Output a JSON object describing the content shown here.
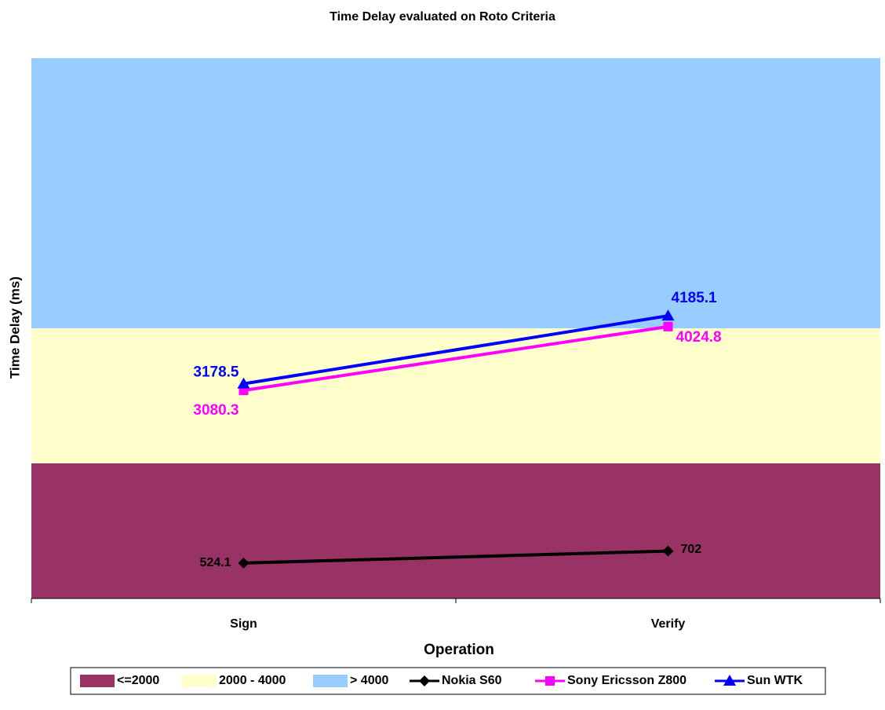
{
  "chart_data": {
    "type": "line",
    "title": "Time Delay evaluated on Roto Criteria",
    "x_label": "Operation",
    "y_label": "Time Delay (ms)",
    "categories": [
      "Sign",
      "Verify"
    ],
    "ylim": [
      0,
      8000
    ],
    "bands": [
      {
        "name": "<=2000",
        "color": "#993366",
        "value": 2000
      },
      {
        "name": "2000 - 4000",
        "color": "#ffffcc",
        "value": 2000
      },
      {
        "name": "> 4000",
        "color": "#99ccff",
        "value": 4000
      }
    ],
    "series": [
      {
        "name": "Nokia S60",
        "color": "#000000",
        "marker": "diamond",
        "values": [
          524.1,
          702
        ]
      },
      {
        "name": "Sony Ericsson Z800",
        "color": "#ff00ff",
        "marker": "square",
        "values": [
          3080.3,
          4024.8
        ]
      },
      {
        "name": "Sun WTK",
        "color": "#0000ff",
        "marker": "triangle",
        "values": [
          3178.5,
          4185.1
        ]
      }
    ],
    "legend": "bottom"
  }
}
